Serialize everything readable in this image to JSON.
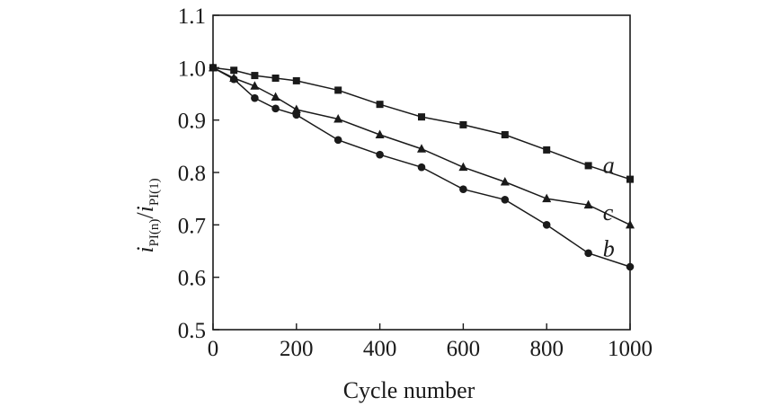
{
  "chart_data": {
    "type": "line",
    "title": "",
    "xlabel": "Cycle number",
    "ylabel_main": "i",
    "ylabel_num_sub": "PI(n)",
    "ylabel_den_sub": "PI(1)",
    "xlim": [
      0,
      1000
    ],
    "ylim": [
      0.5,
      1.1
    ],
    "xticks": [
      0,
      200,
      400,
      600,
      800,
      1000
    ],
    "yticks": [
      0.5,
      0.6,
      0.7,
      0.8,
      0.9,
      1.0,
      1.1
    ],
    "xtick_labels": [
      "0",
      "200",
      "400",
      "600",
      "800",
      "1000"
    ],
    "ytick_labels": [
      "0.5",
      "0.6",
      "0.7",
      "0.8",
      "0.9",
      "1.0",
      "1.1"
    ],
    "grid": false,
    "series": [
      {
        "name": "a",
        "marker": "square",
        "x": [
          0,
          50,
          100,
          150,
          200,
          300,
          400,
          500,
          600,
          700,
          800,
          900,
          1000
        ],
        "values": [
          1.0,
          0.995,
          0.985,
          0.98,
          0.975,
          0.957,
          0.93,
          0.906,
          0.891,
          0.872,
          0.843,
          0.813,
          0.787
        ]
      },
      {
        "name": "b",
        "marker": "circle",
        "x": [
          0,
          50,
          100,
          150,
          200,
          300,
          400,
          500,
          600,
          700,
          800,
          900,
          1000
        ],
        "values": [
          1.0,
          0.978,
          0.942,
          0.922,
          0.91,
          0.862,
          0.834,
          0.81,
          0.768,
          0.748,
          0.7,
          0.646,
          0.62
        ]
      },
      {
        "name": "c",
        "marker": "triangle",
        "x": [
          0,
          50,
          100,
          150,
          200,
          300,
          400,
          500,
          600,
          700,
          800,
          900,
          1000
        ],
        "values": [
          1.0,
          0.98,
          0.965,
          0.944,
          0.92,
          0.902,
          0.872,
          0.845,
          0.81,
          0.782,
          0.75,
          0.738,
          0.7
        ]
      }
    ],
    "series_labels": [
      {
        "text": "a",
        "x": 965,
        "y": 0.815
      },
      {
        "text": "c",
        "x": 965,
        "y": 0.725
      },
      {
        "text": "b",
        "x": 965,
        "y": 0.655
      }
    ]
  }
}
